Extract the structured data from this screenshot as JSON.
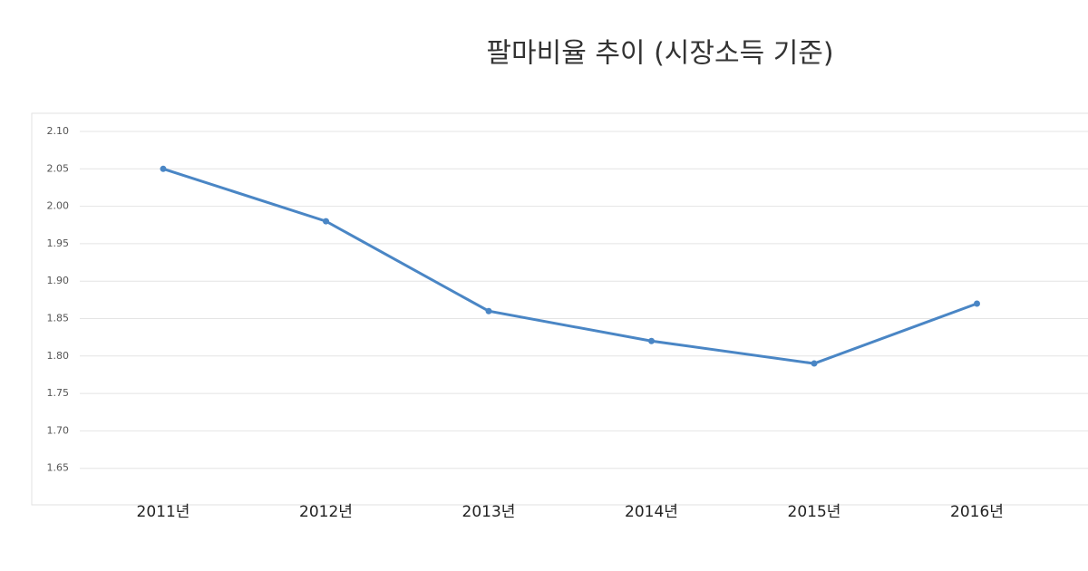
{
  "chart_data": {
    "type": "line",
    "title": "팔마비율 추이 (시장소득 기준)",
    "categories": [
      "2011년",
      "2012년",
      "2013년",
      "2014년",
      "2015년",
      "2016년"
    ],
    "values": [
      2.05,
      1.98,
      1.86,
      1.82,
      1.79,
      1.87
    ],
    "color": "#4a86c5",
    "ylim": [
      1.6,
      2.1
    ],
    "yticks": [
      {
        "value": 2.1,
        "label": "2.10"
      },
      2.05,
      {
        "value": 2.0,
        "label": "2.00"
      },
      1.95,
      {
        "value": 1.9,
        "label": "1.90"
      },
      1.85,
      {
        "value": 1.8,
        "label": "1.80"
      },
      1.75,
      {
        "value": 1.7,
        "label": "1.70"
      },
      1.65
    ],
    "grid": true
  }
}
